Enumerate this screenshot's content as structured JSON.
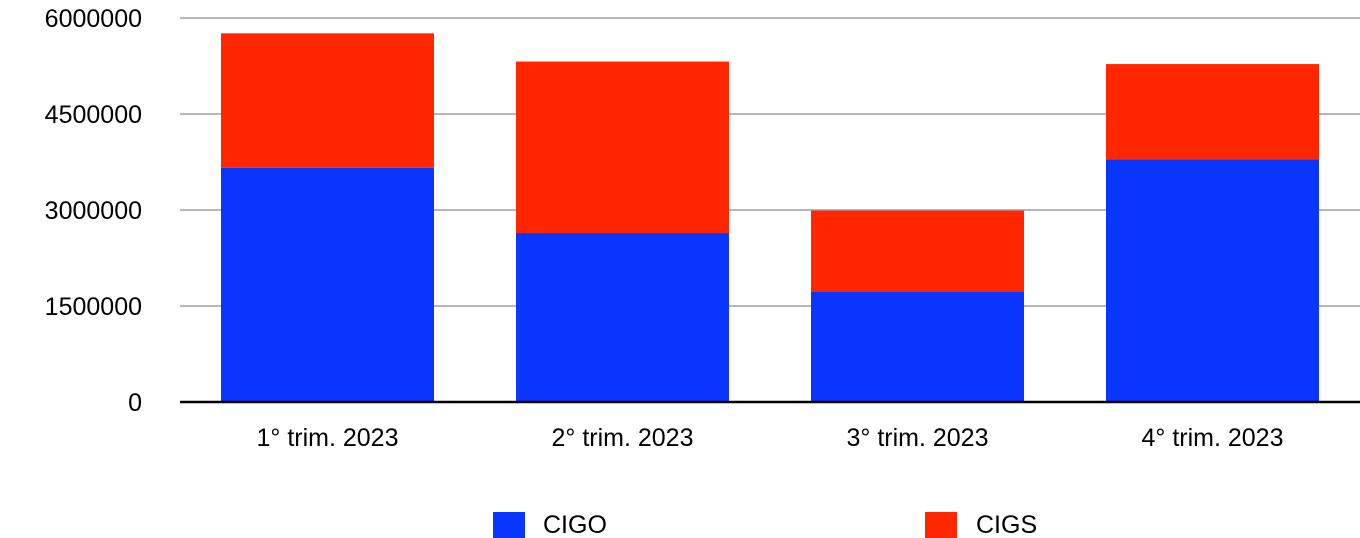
{
  "chart_data": {
    "type": "bar",
    "stacked": true,
    "categories": [
      "1° trim. 2023",
      "2° trim. 2023",
      "3° trim. 2023",
      "4° trim. 2023"
    ],
    "series": [
      {
        "name": "CIGO",
        "color": "#0a36ff",
        "values": [
          3660000,
          2640000,
          1730000,
          3790000
        ]
      },
      {
        "name": "CIGS",
        "color": "#ff2600",
        "values": [
          2100000,
          2680000,
          1260000,
          1490000
        ]
      }
    ],
    "yticks": [
      "0",
      "1500000",
      "3000000",
      "4500000",
      "6000000"
    ],
    "ylim": [
      0,
      6000000
    ],
    "grid": true,
    "legend_position": "bottom"
  }
}
